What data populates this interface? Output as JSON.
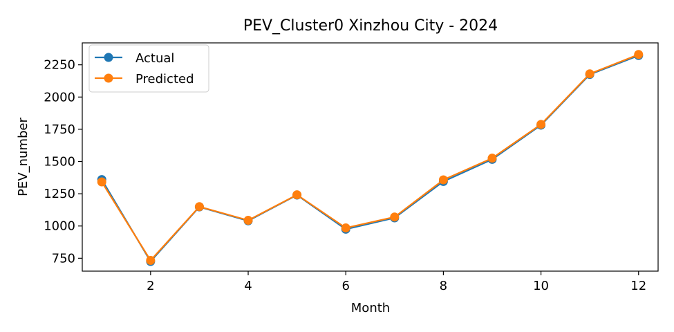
{
  "chart_data": {
    "type": "line",
    "title": "PEV_Cluster0 Xinzhou City - 2024",
    "xlabel": "Month",
    "ylabel": "PEV_number",
    "x": [
      1,
      2,
      3,
      4,
      5,
      6,
      7,
      8,
      9,
      10,
      11,
      12
    ],
    "xlim": [
      0.6,
      12.4
    ],
    "ylim": [
      650,
      2420
    ],
    "xticks": [
      2,
      4,
      6,
      8,
      10,
      12
    ],
    "yticks": [
      750,
      1000,
      1250,
      1500,
      1750,
      2000,
      2250
    ],
    "grid": false,
    "legend_position": "top-left",
    "series": [
      {
        "name": "Actual",
        "color": "#1f77b4",
        "marker": "circle",
        "values": [
          1360,
          725,
          1148,
          1040,
          1240,
          975,
          1063,
          1345,
          1517,
          1782,
          2175,
          2322
        ]
      },
      {
        "name": "Predicted",
        "color": "#ff7f0e",
        "marker": "circle",
        "values": [
          1342,
          733,
          1150,
          1044,
          1242,
          985,
          1070,
          1358,
          1526,
          1788,
          2180,
          2330
        ]
      }
    ]
  }
}
